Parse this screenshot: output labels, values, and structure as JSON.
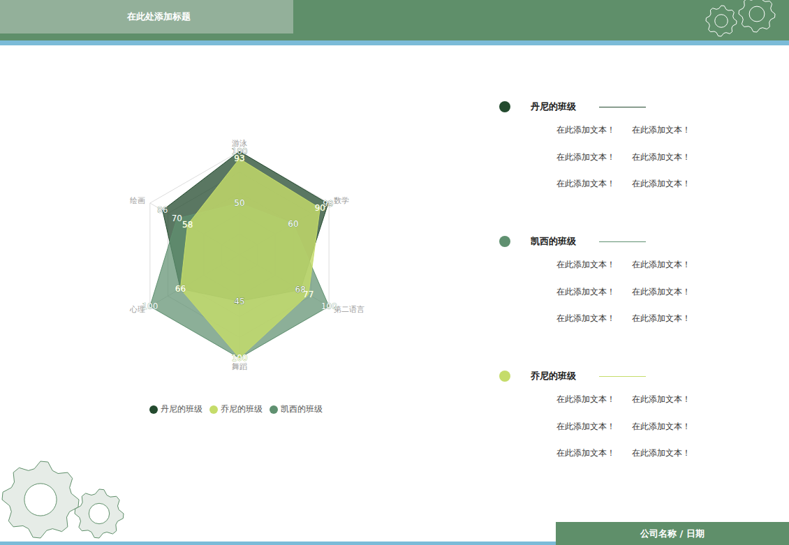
{
  "header": {
    "title": "在此处添加标题"
  },
  "chart_data": {
    "type": "radar",
    "categories": [
      "游泳",
      "数学",
      "第二语言",
      "舞蹈",
      "心理",
      "绘画"
    ],
    "series": [
      {
        "name": "丹尼的班级",
        "color": "#234a2e",
        "values": [
          100,
          99,
          68,
          45,
          66,
          86
        ]
      },
      {
        "name": "凯西的班级",
        "color": "#5f9070",
        "values": [
          50,
          60,
          100,
          100,
          100,
          70
        ]
      },
      {
        "name": "乔尼的班级",
        "color": "#c5dc6a",
        "values": [
          93,
          90,
          77,
          100,
          66,
          58
        ]
      }
    ],
    "ylim": [
      0,
      100
    ],
    "yticks": [
      20,
      40,
      60,
      80,
      100
    ],
    "tick_labels": "x",
    "data_labels": true,
    "legend": "bottom"
  },
  "side_blocks": [
    {
      "name": "丹尼的班级",
      "color": "#234a2e",
      "rows": [
        [
          "在此添加文本！",
          "在此添加文本！"
        ],
        [
          "在此添加文本！",
          "在此添加文本！"
        ],
        [
          "在此添加文本！",
          "在此添加文本！"
        ]
      ]
    },
    {
      "name": "凯西的班级",
      "color": "#5f9070",
      "rows": [
        [
          "在此添加文本！",
          "在此添加文本！"
        ],
        [
          "在此添加文本！",
          "在此添加文本！"
        ],
        [
          "在此添加文本！",
          "在此添加文本！"
        ]
      ]
    },
    {
      "name": "乔尼的班级",
      "color": "#c5dc6a",
      "rows": [
        [
          "在此添加文本！",
          "在此添加文本！"
        ],
        [
          "在此添加文本！",
          "在此添加文本！"
        ],
        [
          "在此添加文本！",
          "在此添加文本！"
        ]
      ]
    }
  ],
  "footer": "公司名称 / 日期"
}
